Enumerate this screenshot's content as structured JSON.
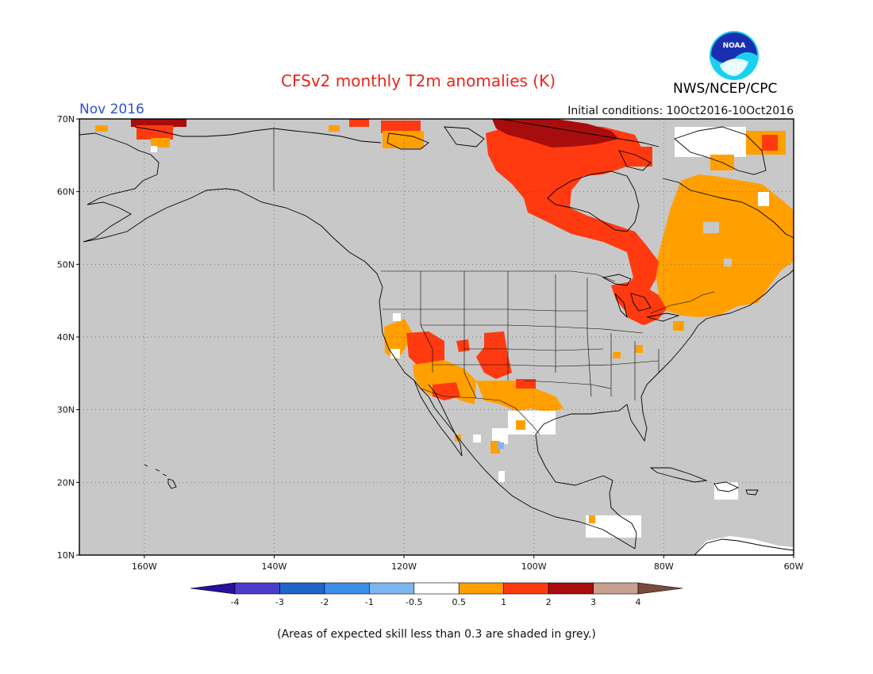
{
  "header": {
    "title": "CFSv2 monthly T2m anomalies (K)",
    "agency": "NWS/NCEP/CPC",
    "month": "Nov 2016",
    "initial_conditions": "Initial conditions: 10Oct2016-10Oct2016",
    "logo_icon": "noaa-logo-icon"
  },
  "map": {
    "region": "North America",
    "lon_range": [
      -170,
      -60
    ],
    "lat_range": [
      10,
      70
    ],
    "background_color": "#c8c8c8",
    "lat_labels": [
      "70N",
      "60N",
      "50N",
      "40N",
      "30N",
      "20N",
      "10N"
    ],
    "lon_labels": [
      "160W",
      "140W",
      "120W",
      "100W",
      "80W",
      "60W"
    ],
    "gridlines": "dotted"
  },
  "colorbar": {
    "labels": [
      "-4",
      "-3",
      "-2",
      "-1",
      "-0.5",
      "0.5",
      "1",
      "2",
      "3",
      "4"
    ],
    "colors": [
      "#2a0f9a",
      "#4a3bc8",
      "#1f64c9",
      "#3b8ee8",
      "#7cb6f2",
      "#ffffff",
      "#ffa000",
      "#ff3a10",
      "#a80d0d",
      "#c8a090",
      "#7a4a3a"
    ]
  },
  "note": "(Areas of expected skill less than 0.3 are shaded in grey.)"
}
